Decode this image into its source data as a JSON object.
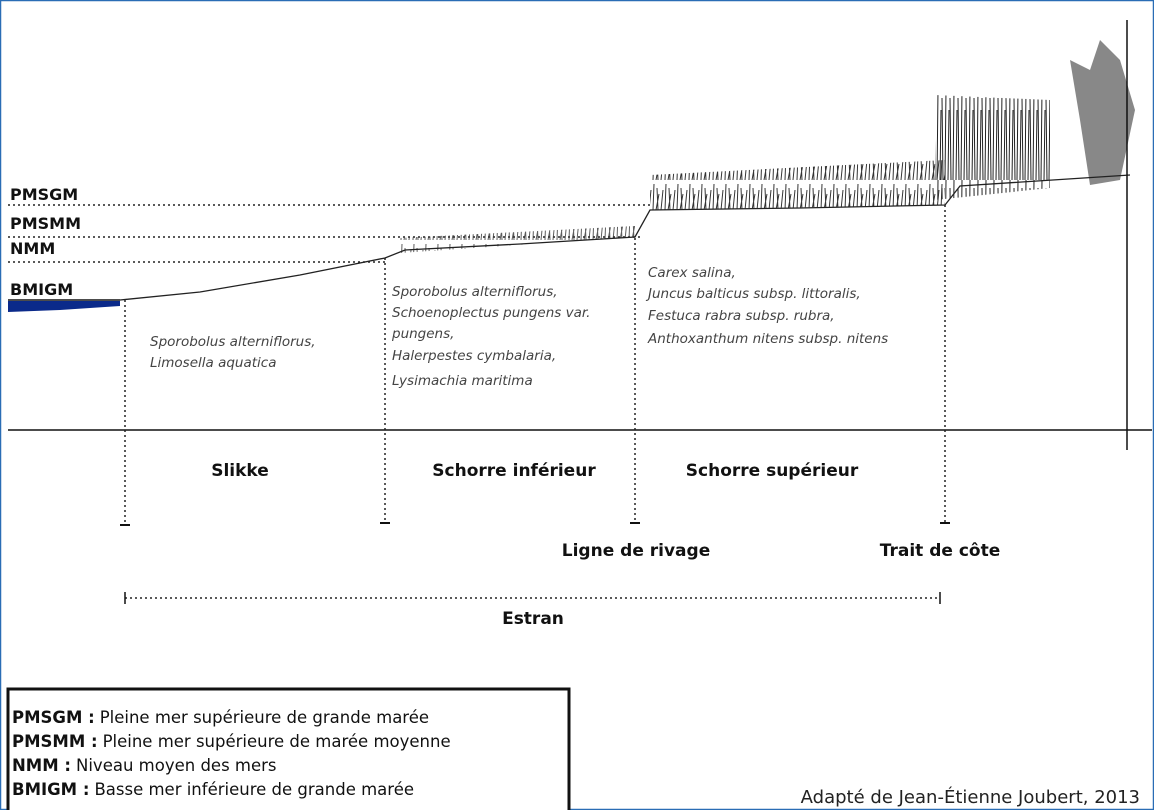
{
  "levels": [
    "PMSGM",
    "PMSMM",
    "NMM",
    "BMIGM"
  ],
  "species": [
    [
      "Sporobolus alterniflorus,",
      "Limosella aquatica"
    ],
    [
      "Sporobolus alterniflorus,",
      "Schoenoplectus pungens var.",
      "pungens,",
      "Halerpestes cymbalaria,",
      "Lysimachia maritima"
    ],
    [
      "Carex salina,",
      "Juncus balticus subsp. littoralis,",
      "Festuca rabra subsp. rubra,",
      "Anthoxanthum nitens subsp. nitens"
    ]
  ],
  "zones": [
    "Slikke",
    "Schorre inférieur",
    "Schorre supérieur"
  ],
  "markers": [
    "Ligne de rivage",
    "Trait de côte"
  ],
  "extent": "Estran",
  "legend": [
    {
      "term": "PMSGM :",
      "definition": "Pleine mer supérieure de grande marée"
    },
    {
      "term": "PMSMM :",
      "definition": "Pleine mer supérieure de marée moyenne"
    },
    {
      "term": "NMM :",
      "definition": "Niveau moyen des mers"
    },
    {
      "term": "BMIGM :",
      "definition": "Basse mer inférieure de grande marée"
    }
  ],
  "credit": "Adapté de Jean-Étienne Joubert, 2013"
}
